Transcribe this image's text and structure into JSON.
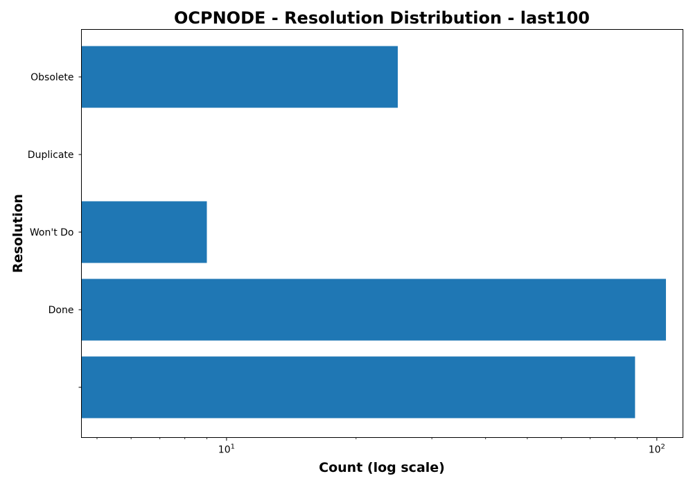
{
  "chart_data": {
    "type": "bar",
    "orientation": "horizontal",
    "title": "OCPNODE - Resolution Distribution - last100",
    "xlabel": "Count (log scale)",
    "ylabel": "Resolution",
    "x_scale": "log",
    "xlim": [
      4.6,
      115
    ],
    "categories": [
      "",
      "Done",
      "Won't Do",
      "Duplicate",
      "Obsolete"
    ],
    "values": [
      89,
      105,
      9,
      4,
      25
    ],
    "bar_color": "#1f77b4",
    "x_major_ticks": [
      {
        "base": "10",
        "exp": "1",
        "value": 10
      },
      {
        "base": "10",
        "exp": "2",
        "value": 100
      }
    ],
    "grid": false,
    "legend": "none"
  }
}
